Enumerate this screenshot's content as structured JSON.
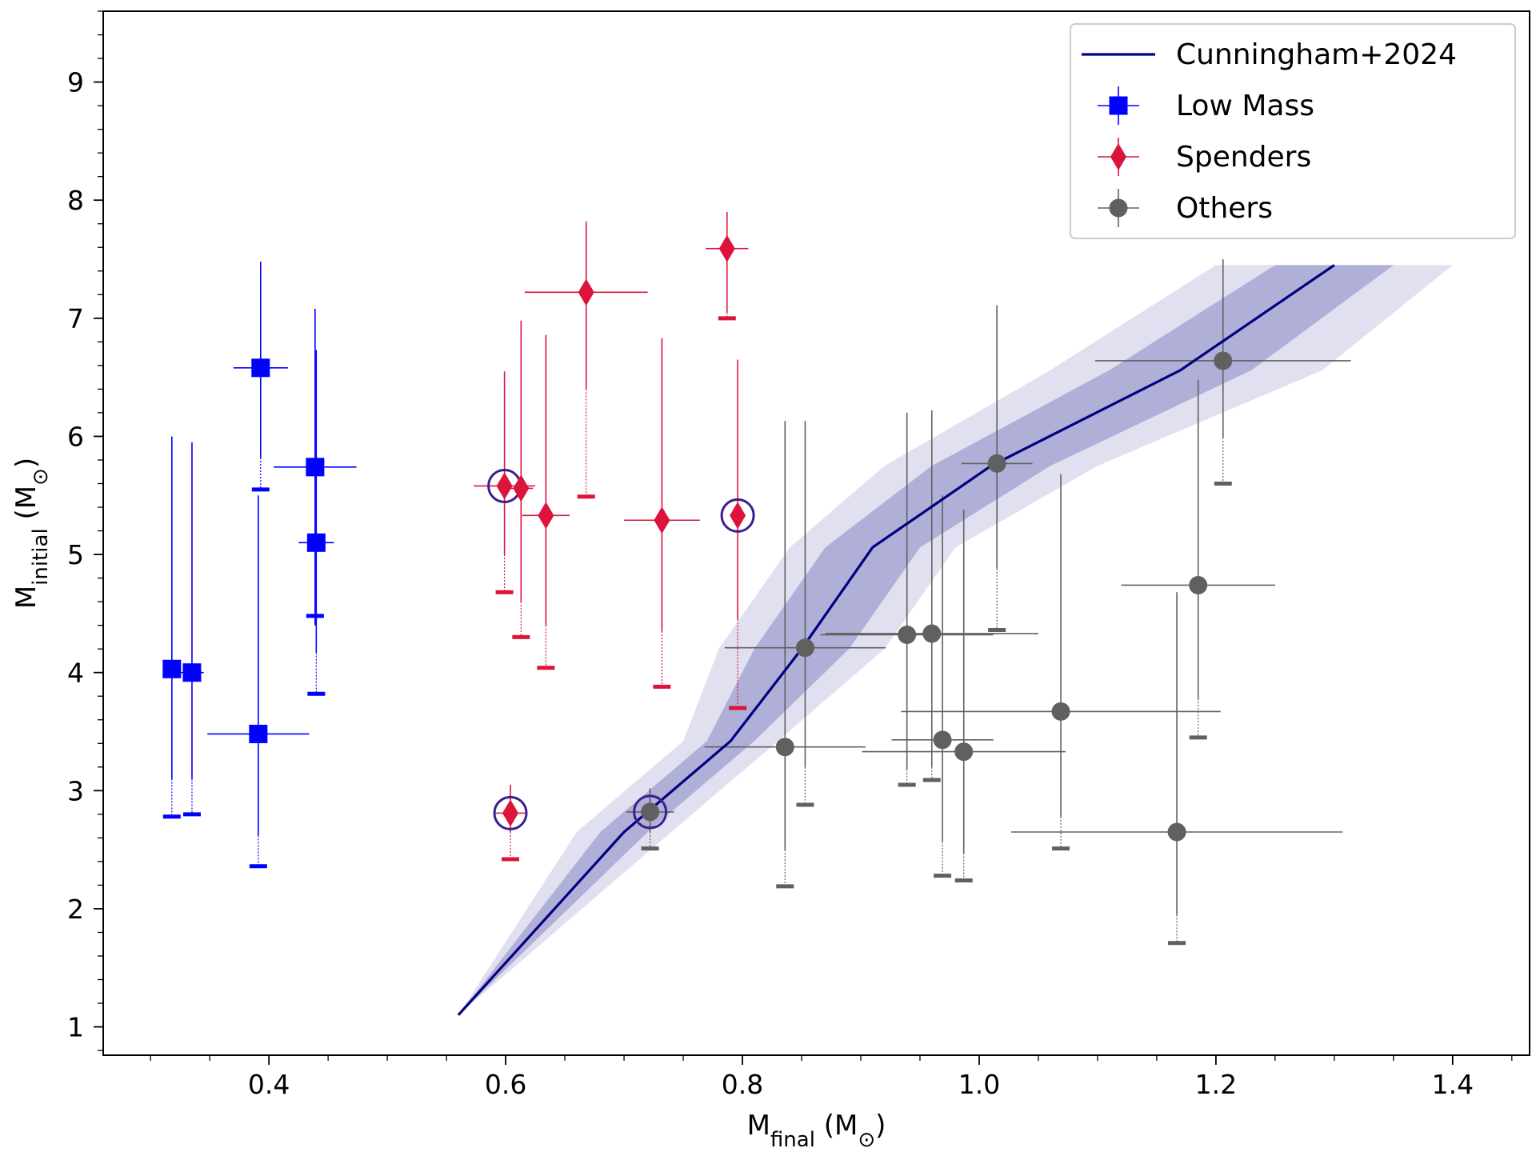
{
  "chart_data": {
    "type": "scatter",
    "xlabel": {
      "main": "M",
      "sub": "final",
      "unit": " (M",
      "sun": "⊙",
      "close": ")"
    },
    "ylabel": {
      "main": "M",
      "sub": "initial",
      "unit": " (M",
      "sun": "⊙",
      "close": ")"
    },
    "xlim": [
      0.26,
      1.465
    ],
    "ylim": [
      0.76,
      9.6
    ],
    "xticks": [
      {
        "v": 0.4,
        "label": "0.4"
      },
      {
        "v": 0.6,
        "label": "0.6"
      },
      {
        "v": 0.8,
        "label": "0.8"
      },
      {
        "v": 1.0,
        "label": "1.0"
      },
      {
        "v": 1.2,
        "label": "1.2"
      },
      {
        "v": 1.4,
        "label": "1.4"
      }
    ],
    "yticks": [
      {
        "v": 1,
        "label": "1"
      },
      {
        "v": 2,
        "label": "2"
      },
      {
        "v": 3,
        "label": "3"
      },
      {
        "v": 4,
        "label": "4"
      },
      {
        "v": 5,
        "label": "5"
      },
      {
        "v": 6,
        "label": "6"
      },
      {
        "v": 7,
        "label": "7"
      },
      {
        "v": 8,
        "label": "8"
      },
      {
        "v": 9,
        "label": "9"
      }
    ],
    "legend": {
      "position": "top-right",
      "entries": [
        {
          "label": "Cunningham+2024",
          "marker": "line",
          "color": "#000080"
        },
        {
          "label": "Low Mass",
          "marker": "square",
          "color": "#0000ff"
        },
        {
          "label": "Spenders",
          "marker": "diamond",
          "color": "#dc143c"
        },
        {
          "label": "Others",
          "marker": "circle",
          "color": "#606060"
        }
      ]
    },
    "relation": {
      "name": "Cunningham+2024",
      "color": "#000080",
      "y": [
        1.1,
        2.65,
        3.42,
        4.2,
        5.06,
        5.75,
        6.56,
        7.45
      ],
      "x": [
        0.56,
        0.7,
        0.79,
        0.85,
        0.91,
        1.01,
        1.17,
        1.3
      ],
      "in_lo": [
        0.56,
        0.68,
        0.77,
        0.81,
        0.87,
        0.96,
        1.11,
        1.25
      ],
      "in_hi": [
        0.56,
        0.72,
        0.81,
        0.89,
        0.95,
        1.06,
        1.23,
        1.35
      ],
      "out_lo": [
        0.56,
        0.66,
        0.75,
        0.78,
        0.84,
        0.92,
        1.06,
        1.2
      ],
      "out_hi": [
        0.56,
        0.74,
        0.83,
        0.92,
        0.98,
        1.1,
        1.29,
        1.4
      ]
    },
    "series": [
      {
        "name": "Low Mass",
        "marker": "square",
        "color": "#0000ff",
        "points": [
          {
            "x": 0.318,
            "y": 4.03,
            "xerr": 0.006,
            "ylo": 3.1,
            "yhi": 6.0,
            "limit": 2.78
          },
          {
            "x": 0.335,
            "y": 4.0,
            "xerr": 0.01,
            "ylo": 3.1,
            "yhi": 5.95,
            "limit": 2.8
          },
          {
            "x": 0.393,
            "y": 6.58,
            "xerr": 0.023,
            "ylo": 5.82,
            "yhi": 7.48,
            "limit": 5.55
          },
          {
            "x": 0.439,
            "y": 5.74,
            "xerr": 0.035,
            "ylo": 4.4,
            "yhi": 7.08,
            "limit": 4.48
          },
          {
            "x": 0.391,
            "y": 3.48,
            "xerr": 0.043,
            "ylo": 2.62,
            "yhi": 5.5,
            "limit": 2.36
          },
          {
            "x": 0.44,
            "y": 5.1,
            "xerr": 0.015,
            "ylo": 4.17,
            "yhi": 6.73,
            "limit": 3.82
          }
        ]
      },
      {
        "name": "Spenders",
        "marker": "diamond",
        "color": "#dc143c",
        "points": [
          {
            "x": 0.599,
            "y": 5.58,
            "xerr": 0.026,
            "ylo": 5.0,
            "yhi": 6.55,
            "limit": 4.68,
            "circled": true
          },
          {
            "x": 0.613,
            "y": 5.56,
            "xerr": 0.01,
            "ylo": 4.6,
            "yhi": 6.98,
            "limit": 4.3
          },
          {
            "x": 0.634,
            "y": 5.33,
            "xerr": 0.02,
            "ylo": 4.4,
            "yhi": 6.86,
            "limit": 4.04
          },
          {
            "x": 0.668,
            "y": 7.22,
            "xerr": 0.052,
            "ylo": 6.4,
            "yhi": 7.82,
            "limit": 5.49
          },
          {
            "x": 0.732,
            "y": 5.29,
            "xerr": 0.032,
            "ylo": 4.35,
            "yhi": 6.83,
            "limit": 3.88
          },
          {
            "x": 0.787,
            "y": 7.59,
            "xerr": 0.018,
            "ylo": 7.05,
            "yhi": 7.9,
            "limit": 7.0
          },
          {
            "x": 0.796,
            "y": 5.33,
            "xerr": 0.006,
            "ylo": 4.45,
            "yhi": 6.65,
            "limit": 3.7,
            "circled": true
          },
          {
            "x": 0.604,
            "y": 2.81,
            "xerr": 0.014,
            "ylo": 2.65,
            "yhi": 3.05,
            "limit": 2.42,
            "circled": true
          }
        ]
      },
      {
        "name": "Others",
        "marker": "circle",
        "color": "#606060",
        "points": [
          {
            "x": 0.722,
            "y": 2.82,
            "xerr": 0.02,
            "ylo": 2.65,
            "yhi": 3.02,
            "limit": 2.51,
            "circled": true
          },
          {
            "x": 0.836,
            "y": 3.37,
            "xerr": 0.068,
            "ylo": 2.5,
            "yhi": 6.13,
            "limit": 2.19
          },
          {
            "x": 0.853,
            "y": 4.21,
            "xerr": 0.068,
            "ylo": 3.2,
            "yhi": 6.13,
            "limit": 2.88
          },
          {
            "x": 0.939,
            "y": 4.32,
            "xerr": 0.073,
            "ylo": 3.18,
            "yhi": 6.2,
            "limit": 3.05
          },
          {
            "x": 0.96,
            "y": 4.33,
            "xerr": 0.09,
            "ylo": 3.2,
            "yhi": 6.22,
            "limit": 3.09
          },
          {
            "x": 0.969,
            "y": 3.43,
            "xerr": 0.043,
            "ylo": 2.57,
            "yhi": 5.5,
            "limit": 2.28
          },
          {
            "x": 0.987,
            "y": 3.33,
            "xerr": 0.086,
            "ylo": 2.47,
            "yhi": 5.38,
            "limit": 2.24
          },
          {
            "x": 1.015,
            "y": 5.77,
            "xerr": 0.03,
            "ylo": 4.88,
            "yhi": 7.11,
            "limit": 4.36
          },
          {
            "x": 1.069,
            "y": 3.67,
            "xerr": 0.135,
            "ylo": 2.78,
            "yhi": 5.68,
            "limit": 2.51
          },
          {
            "x": 1.167,
            "y": 2.65,
            "xerr": 0.14,
            "ylo": 1.95,
            "yhi": 4.68,
            "limit": 1.71
          },
          {
            "x": 1.185,
            "y": 4.74,
            "xerr": 0.065,
            "ylo": 3.78,
            "yhi": 6.48,
            "limit": 3.45
          },
          {
            "x": 1.206,
            "y": 6.64,
            "xerr": 0.108,
            "ylo": 5.99,
            "yhi": 7.5,
            "limit": 5.6
          }
        ]
      }
    ]
  }
}
